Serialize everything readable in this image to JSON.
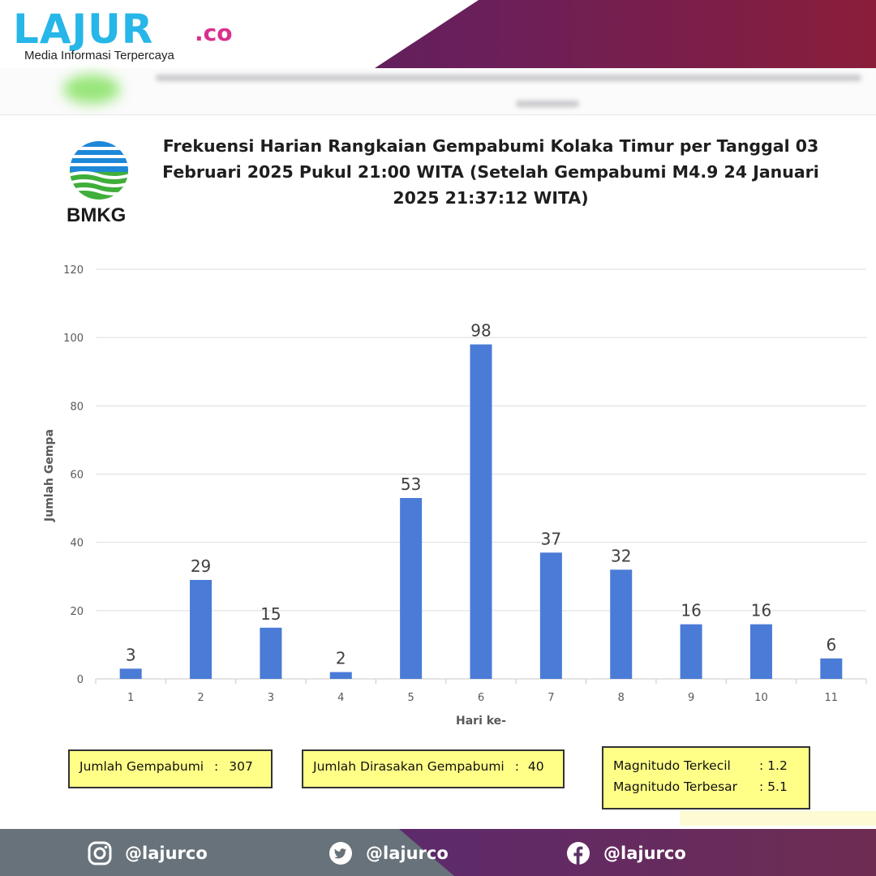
{
  "header": {
    "logo_text": "LAJUR",
    "logo_tld": ".co",
    "tagline": "Media Informasi Terpercaya",
    "colors": {
      "logo": "#27b6e8",
      "tld": "#d8308f",
      "gradient_start": "#4a2266",
      "gradient_end": "#8a1e3a"
    }
  },
  "agency": {
    "name": "BMKG",
    "logo_icon": "bmkg-emblem-icon"
  },
  "chart_data": {
    "type": "bar",
    "title": "Frekuensi Harian Rangkaian Gempabumi Kolaka Timur per Tanggal 03 Februari 2025 Pukul 21:00 WITA (Setelah Gempabumi M4.9 24 Januari 2025 21:37:12 WITA)",
    "xlabel": "Hari ke-",
    "ylabel": "Jumlah Gempa",
    "categories": [
      "1",
      "2",
      "3",
      "4",
      "5",
      "6",
      "7",
      "8",
      "9",
      "10",
      "11"
    ],
    "values": [
      3,
      29,
      15,
      2,
      53,
      98,
      37,
      32,
      16,
      16,
      6
    ],
    "ylim": [
      0,
      120
    ],
    "yticks": [
      0,
      20,
      40,
      60,
      80,
      100,
      120
    ],
    "grid": true,
    "data_labels": true,
    "bar_color": "#4a7bd6"
  },
  "summary": {
    "total_label": "Jumlah Gempabumi",
    "total_sep": ":",
    "total_value": "307",
    "felt_label": "Jumlah Dirasakan Gempabumi",
    "felt_sep": ":",
    "felt_value": "40",
    "mag_min_label": "Magnitudo Terkecil",
    "mag_min_value": ": 1.2",
    "mag_max_label": "Magnitudo Terbesar",
    "mag_max_value": ": 5.1"
  },
  "footer": {
    "socials": [
      {
        "icon": "instagram-icon",
        "handle": "@lajurco"
      },
      {
        "icon": "twitter-icon",
        "handle": "@lajurco"
      },
      {
        "icon": "facebook-icon",
        "handle": "@lajurco"
      }
    ]
  }
}
